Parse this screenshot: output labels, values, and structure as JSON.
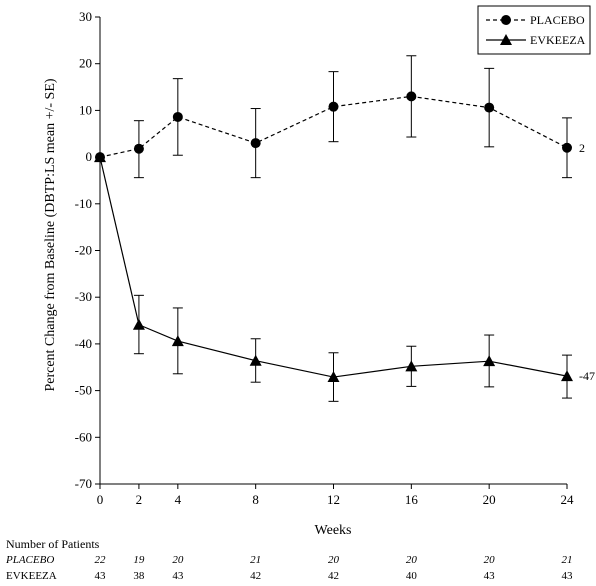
{
  "chart_data": {
    "type": "line",
    "ylabel": "Percent Change from Baseline (DBTP:LS mean +/- SE)",
    "xlabel": "Weeks",
    "x": [
      0,
      2,
      4,
      8,
      12,
      16,
      20,
      24
    ],
    "xticks": [
      "0",
      "2",
      "4",
      "8",
      "12",
      "16",
      "20",
      "24"
    ],
    "xlim": [
      0,
      24
    ],
    "ylim": [
      -70,
      30
    ],
    "yticks": [
      "30",
      "20",
      "10",
      "0",
      "-10",
      "-20",
      "-30",
      "-40",
      "-50",
      "-60",
      "-70"
    ],
    "legend_position": "top-right",
    "series": [
      {
        "name": "PLACEBO",
        "marker": "circle",
        "line": "dashed",
        "values": [
          0,
          1.8,
          8.6,
          3.0,
          10.8,
          13.0,
          10.6,
          2.0
        ],
        "err_low": [
          0,
          -4.4,
          0.4,
          -4.4,
          3.3,
          4.3,
          2.2,
          -4.4
        ],
        "err_high": [
          0,
          7.8,
          16.8,
          10.4,
          18.3,
          21.7,
          19.0,
          8.4
        ],
        "end_label": "2"
      },
      {
        "name": "EVKEEZA",
        "marker": "triangle",
        "line": "solid",
        "values": [
          0,
          -35.9,
          -39.4,
          -43.6,
          -47.1,
          -44.8,
          -43.7,
          -46.9
        ],
        "err_low": [
          0,
          -42.1,
          -46.4,
          -48.2,
          -52.3,
          -49.1,
          -49.2,
          -51.6
        ],
        "err_high": [
          0,
          -29.6,
          -32.3,
          -38.9,
          -41.9,
          -40.5,
          -38.1,
          -42.4
        ],
        "end_label": "-47"
      }
    ]
  },
  "patients": {
    "title": "Number of Patients",
    "rows": [
      {
        "label": "PLACEBO",
        "italic": true,
        "values": [
          "22",
          "19",
          "20",
          "21",
          "20",
          "20",
          "20",
          "21"
        ]
      },
      {
        "label": "EVKEEZA",
        "italic": false,
        "values": [
          "43",
          "38",
          "43",
          "42",
          "42",
          "40",
          "43",
          "43"
        ]
      }
    ]
  }
}
